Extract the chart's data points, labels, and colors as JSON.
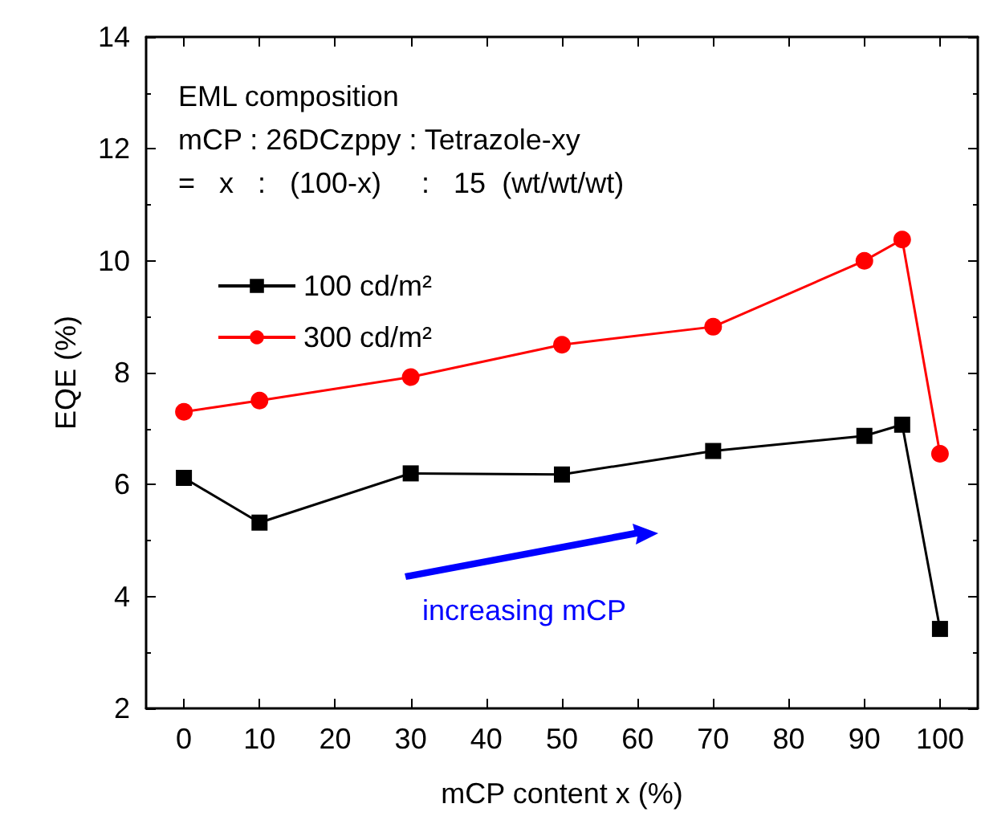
{
  "chart_data": {
    "type": "line",
    "xlabel": "mCP content x (%)",
    "ylabel": "EQE (%)",
    "x": [
      0,
      10,
      30,
      50,
      70,
      90,
      95,
      100
    ],
    "series": [
      {
        "name": "100 cd/m²",
        "color": "#000000",
        "marker": "square",
        "values": [
          6.12,
          5.32,
          6.2,
          6.18,
          6.6,
          6.87,
          7.07,
          3.42
        ]
      },
      {
        "name": "300 cd/m²",
        "color": "#ff0000",
        "marker": "circle",
        "values": [
          7.3,
          7.5,
          7.92,
          8.5,
          8.82,
          10.0,
          10.38,
          6.55
        ]
      }
    ],
    "xlim": [
      -5,
      105
    ],
    "xticks": [
      0,
      10,
      20,
      30,
      40,
      50,
      60,
      70,
      80,
      90,
      100
    ],
    "ylim": [
      2,
      14
    ],
    "yticks": [
      2,
      4,
      6,
      8,
      10,
      12,
      14
    ],
    "grid": false,
    "legend": "top left",
    "line_style": "solid",
    "annotations": [
      "EML composition",
      "mCP : 26DCzppy : Tetrazole-xy",
      "=   x   :   (100-x)     :   15  (wt/wt/wt)",
      "increasing mCP"
    ]
  }
}
